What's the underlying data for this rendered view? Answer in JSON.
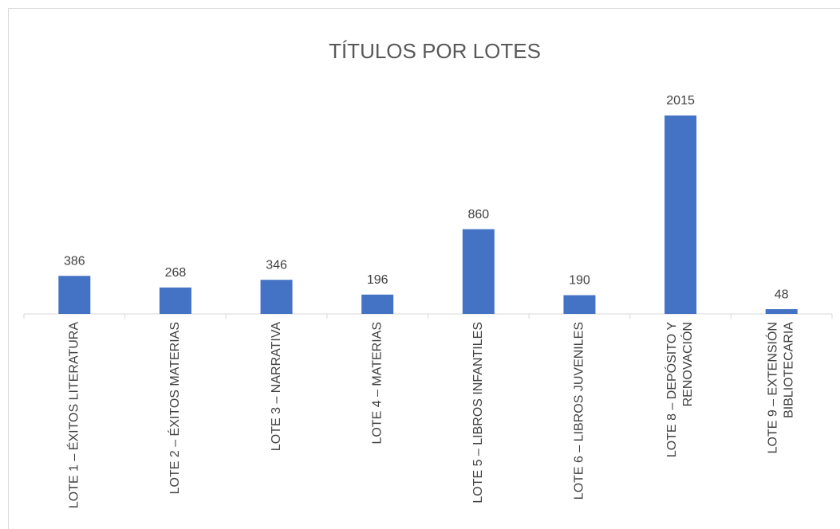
{
  "chart_data": {
    "type": "bar",
    "title": "TÍTULOS POR LOTES",
    "categories": [
      "LOTE 1 – ÉXITOS LITERATURA",
      "LOTE 2 – ÉXITOS MATERIAS",
      "LOTE 3 – NARRATIVA",
      "LOTE 4 – MATERIAS",
      "LOTE 5 – LIBROS INFANTILES",
      "LOTE 6 – LIBROS JUVENILES",
      "LOTE 8 – DEPÓSITO Y\nRENOVACIÓN",
      "LOTE 9 – EXTENSIÓN\nBIBLIOTECARIA"
    ],
    "values": [
      386,
      268,
      346,
      196,
      860,
      190,
      2015,
      48
    ],
    "color": "#4472c4",
    "ylim": [
      0,
      2500
    ]
  }
}
